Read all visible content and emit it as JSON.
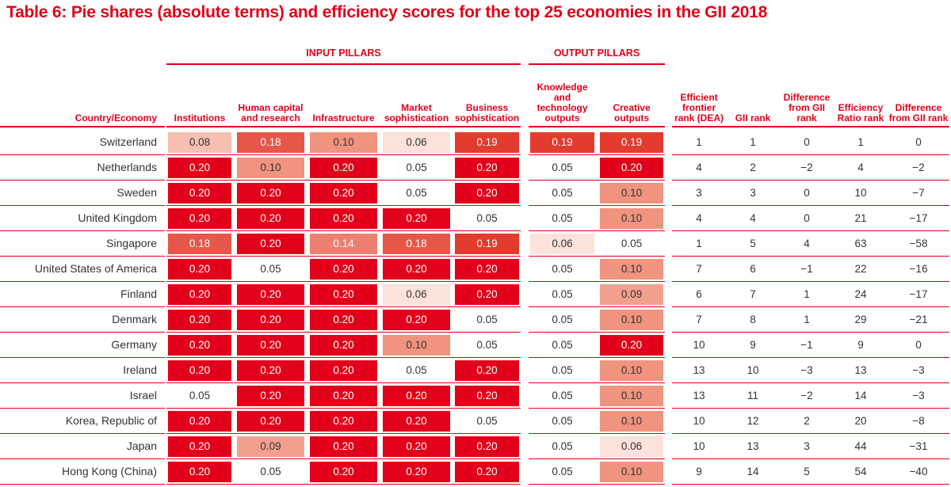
{
  "title": "Table 6: Pie shares (absolute terms) and efficiency scores for the top 25 economies in the GII 2018",
  "groups": {
    "input": "INPUT PILLARS",
    "output": "OUTPUT PILLARS"
  },
  "headers": {
    "country": "Country/Economy",
    "institutions": "Institutions",
    "human": "Human capital and research",
    "infrastructure": "Infrastructure",
    "market": "Market sophistication",
    "business": "Business sophistication",
    "knowledge": "Knowledge and technology outputs",
    "creative": "Creative outputs",
    "frontier": "Efficient frontier rank (DEA)",
    "gii_rank": "GII rank",
    "diff1": "Difference from GII rank",
    "eff_ratio": "Efficiency Ratio rank",
    "diff2": "Difference from GII rank"
  },
  "rows": [
    {
      "country": "Switzerland",
      "inputs": [
        "0.08",
        "0.18",
        "0.10",
        "0.06",
        "0.19"
      ],
      "outputs": [
        "0.19",
        "0.19"
      ],
      "ranks": [
        "1",
        "1",
        "0",
        "1",
        "0"
      ]
    },
    {
      "country": "Netherlands",
      "inputs": [
        "0.20",
        "0.10",
        "0.20",
        "0.05",
        "0.20"
      ],
      "outputs": [
        "0.05",
        "0.20"
      ],
      "ranks": [
        "4",
        "2",
        "−2",
        "4",
        "−2"
      ]
    },
    {
      "country": "Sweden",
      "inputs": [
        "0.20",
        "0.20",
        "0.20",
        "0.05",
        "0.20"
      ],
      "outputs": [
        "0.05",
        "0.10"
      ],
      "ranks": [
        "3",
        "3",
        "0",
        "10",
        "−7"
      ]
    },
    {
      "country": "United Kingdom",
      "inputs": [
        "0.20",
        "0.20",
        "0.20",
        "0.20",
        "0.05"
      ],
      "outputs": [
        "0.05",
        "0.10"
      ],
      "ranks": [
        "4",
        "4",
        "0",
        "21",
        "−17"
      ]
    },
    {
      "country": "Singapore",
      "inputs": [
        "0.18",
        "0.20",
        "0.14",
        "0.18",
        "0.19"
      ],
      "outputs": [
        "0.06",
        "0.05"
      ],
      "ranks": [
        "1",
        "5",
        "4",
        "63",
        "−58"
      ]
    },
    {
      "country": "United States of America",
      "inputs": [
        "0.20",
        "0.05",
        "0.20",
        "0.20",
        "0.20"
      ],
      "outputs": [
        "0.05",
        "0.10"
      ],
      "ranks": [
        "7",
        "6",
        "−1",
        "22",
        "−16"
      ]
    },
    {
      "country": "Finland",
      "inputs": [
        "0.20",
        "0.20",
        "0.20",
        "0.06",
        "0.20"
      ],
      "outputs": [
        "0.05",
        "0.09"
      ],
      "ranks": [
        "6",
        "7",
        "1",
        "24",
        "−17"
      ]
    },
    {
      "country": "Denmark",
      "inputs": [
        "0.20",
        "0.20",
        "0.20",
        "0.20",
        "0.05"
      ],
      "outputs": [
        "0.05",
        "0.10"
      ],
      "ranks": [
        "7",
        "8",
        "1",
        "29",
        "−21"
      ]
    },
    {
      "country": "Germany",
      "inputs": [
        "0.20",
        "0.20",
        "0.20",
        "0.10",
        "0.05"
      ],
      "outputs": [
        "0.05",
        "0.20"
      ],
      "ranks": [
        "10",
        "9",
        "−1",
        "9",
        "0"
      ]
    },
    {
      "country": "Ireland",
      "inputs": [
        "0.20",
        "0.20",
        "0.20",
        "0.05",
        "0.20"
      ],
      "outputs": [
        "0.05",
        "0.10"
      ],
      "ranks": [
        "13",
        "10",
        "−3",
        "13",
        "−3"
      ]
    },
    {
      "country": "Israel",
      "inputs": [
        "0.05",
        "0.20",
        "0.20",
        "0.20",
        "0.20"
      ],
      "outputs": [
        "0.05",
        "0.10"
      ],
      "ranks": [
        "13",
        "11",
        "−2",
        "14",
        "−3"
      ]
    },
    {
      "country": "Korea, Republic of",
      "inputs": [
        "0.20",
        "0.20",
        "0.20",
        "0.20",
        "0.05"
      ],
      "outputs": [
        "0.05",
        "0.10"
      ],
      "ranks": [
        "10",
        "12",
        "2",
        "20",
        "−8"
      ]
    },
    {
      "country": "Japan",
      "inputs": [
        "0.20",
        "0.09",
        "0.20",
        "0.20",
        "0.20"
      ],
      "outputs": [
        "0.05",
        "0.06"
      ],
      "ranks": [
        "10",
        "13",
        "3",
        "44",
        "−31"
      ]
    },
    {
      "country": "Hong Kong (China)",
      "inputs": [
        "0.20",
        "0.05",
        "0.20",
        "0.20",
        "0.20"
      ],
      "outputs": [
        "0.05",
        "0.10"
      ],
      "ranks": [
        "9",
        "14",
        "5",
        "54",
        "−40"
      ]
    }
  ]
}
